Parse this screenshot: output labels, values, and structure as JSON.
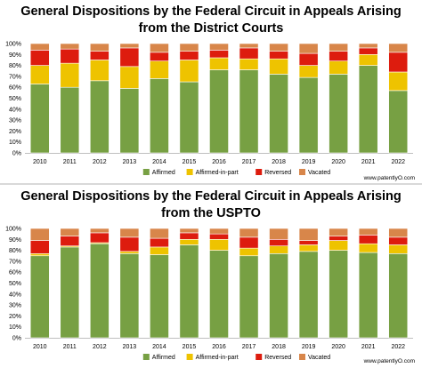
{
  "credit": "www.patentlyO.com",
  "colors": {
    "Affirmed": "#77a043",
    "Affirmed-in-part": "#eec300",
    "Reversed": "#dd1c0e",
    "Vacated": "#d8864a"
  },
  "chart_data": [
    {
      "type": "bar",
      "stacked": true,
      "title_lines": [
        "General Dispositions by the Federal Circuit in Appeals Arising",
        "from the District Courts"
      ],
      "xlabel": "",
      "ylabel": "",
      "ylim": [
        0,
        100
      ],
      "y_ticks": [
        "0%",
        "10%",
        "20%",
        "30%",
        "40%",
        "50%",
        "60%",
        "70%",
        "80%",
        "90%",
        "100%"
      ],
      "legend_position": "bottom",
      "grid": false,
      "categories": [
        "2010",
        "2011",
        "2012",
        "2013",
        "2014",
        "2015",
        "2016",
        "2017",
        "2018",
        "2019",
        "2020",
        "2021",
        "2022"
      ],
      "series": [
        {
          "name": "Affirmed",
          "values": [
            63,
            60,
            66,
            59,
            68,
            65,
            76,
            76,
            72,
            69,
            72,
            80,
            57
          ]
        },
        {
          "name": "Affirmed-in-part",
          "values": [
            17,
            22,
            19,
            20,
            16,
            20,
            11,
            10,
            14,
            11,
            12,
            10,
            17
          ]
        },
        {
          "name": "Reversed",
          "values": [
            14,
            13,
            8,
            17,
            8,
            8,
            7,
            10,
            7,
            11,
            9,
            6,
            18
          ]
        },
        {
          "name": "Vacated",
          "values": [
            6,
            5,
            7,
            4,
            8,
            7,
            6,
            4,
            7,
            9,
            7,
            4,
            8
          ]
        }
      ]
    },
    {
      "type": "bar",
      "stacked": true,
      "title_lines": [
        "General Dispositions by the Federal Circuit in Appeals Arising",
        "from the USPTO"
      ],
      "xlabel": "",
      "ylabel": "",
      "ylim": [
        0,
        100
      ],
      "y_ticks": [
        "0%",
        "10%",
        "20%",
        "30%",
        "40%",
        "50%",
        "60%",
        "70%",
        "80%",
        "90%",
        "100%"
      ],
      "legend_position": "bottom",
      "grid": false,
      "categories": [
        "2010",
        "2011",
        "2012",
        "2013",
        "2014",
        "2015",
        "2016",
        "2017",
        "2018",
        "2019",
        "2020",
        "2021",
        "2022"
      ],
      "series": [
        {
          "name": "Affirmed",
          "values": [
            75,
            83,
            86,
            77,
            76,
            85,
            80,
            75,
            77,
            79,
            80,
            78,
            77
          ]
        },
        {
          "name": "Affirmed-in-part",
          "values": [
            2,
            1,
            1,
            2,
            7,
            5,
            10,
            7,
            7,
            6,
            9,
            8,
            8
          ]
        },
        {
          "name": "Reversed",
          "values": [
            12,
            9,
            9,
            13,
            8,
            6,
            5,
            10,
            6,
            4,
            4,
            8,
            7
          ]
        },
        {
          "name": "Vacated",
          "values": [
            11,
            7,
            4,
            8,
            9,
            4,
            5,
            8,
            10,
            11,
            7,
            6,
            8
          ]
        }
      ]
    }
  ]
}
